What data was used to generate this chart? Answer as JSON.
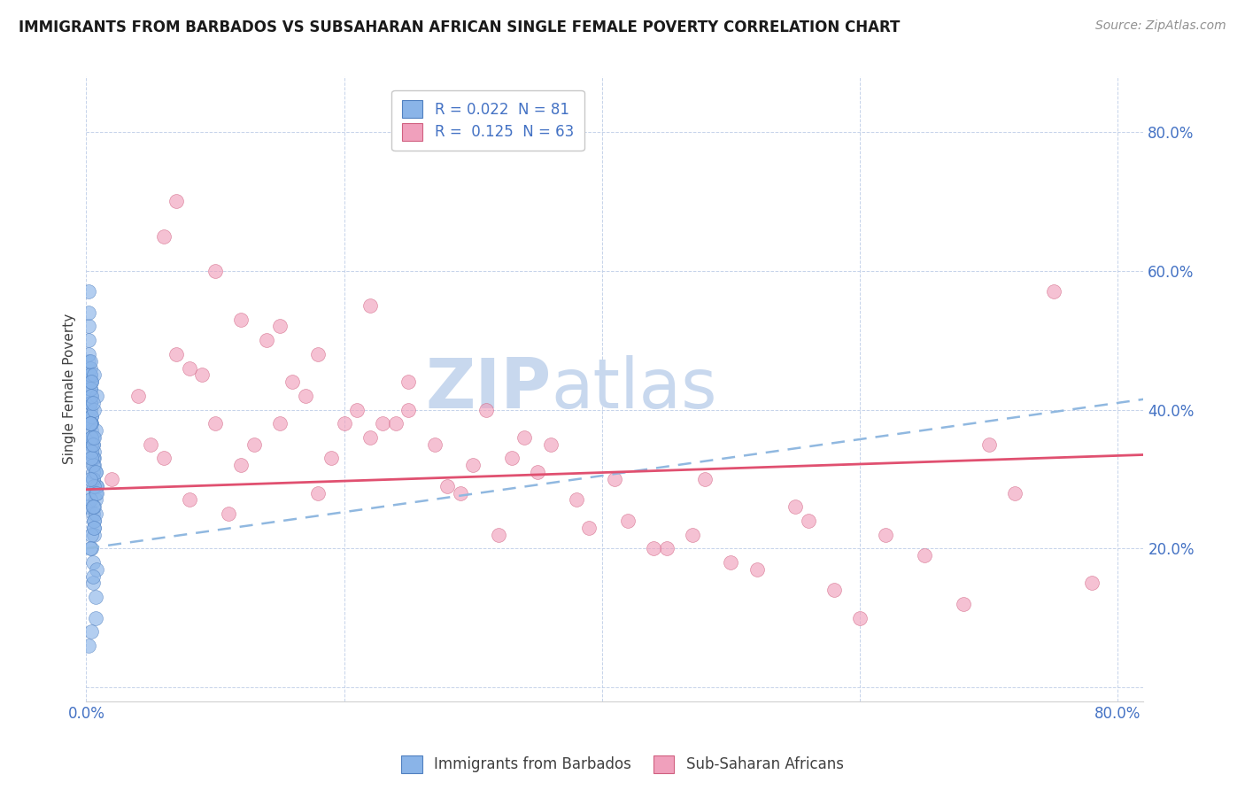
{
  "title": "IMMIGRANTS FROM BARBADOS VS SUBSAHARAN AFRICAN SINGLE FEMALE POVERTY CORRELATION CHART",
  "source": "Source: ZipAtlas.com",
  "ylabel": "Single Female Poverty",
  "xlim": [
    0.0,
    0.82
  ],
  "ylim": [
    -0.02,
    0.88
  ],
  "y_ticks": [
    0.0,
    0.2,
    0.4,
    0.6,
    0.8
  ],
  "y_tick_labels": [
    "",
    "20.0%",
    "40.0%",
    "60.0%",
    "80.0%"
  ],
  "x_ticks": [
    0.0,
    0.2,
    0.4,
    0.6,
    0.8
  ],
  "x_tick_labels": [
    "0.0%",
    "",
    "",
    "",
    "80.0%"
  ],
  "legend_line1": "R = 0.022  N = 81",
  "legend_line2": "R =  0.125  N = 63",
  "barbados_color": "#8ab4e8",
  "barbados_edge": "#5080c0",
  "subsaharan_color": "#f0a0bc",
  "subsaharan_edge": "#d06080",
  "trend_barbados_color": "#90b8e0",
  "trend_subsaharan_color": "#e05070",
  "watermark_zip": "ZIP",
  "watermark_atlas": "atlas",
  "watermark_color": "#c8d8ee",
  "background_color": "#ffffff",
  "barbados_x": [
    0.005,
    0.003,
    0.004,
    0.002,
    0.006,
    0.008,
    0.003,
    0.005,
    0.007,
    0.004,
    0.002,
    0.006,
    0.003,
    0.005,
    0.004,
    0.007,
    0.003,
    0.006,
    0.004,
    0.005,
    0.002,
    0.008,
    0.003,
    0.006,
    0.004,
    0.005,
    0.003,
    0.007,
    0.004,
    0.006,
    0.002,
    0.005,
    0.003,
    0.008,
    0.004,
    0.006,
    0.003,
    0.005,
    0.007,
    0.004,
    0.002,
    0.006,
    0.003,
    0.005,
    0.004,
    0.007,
    0.003,
    0.006,
    0.004,
    0.005,
    0.002,
    0.008,
    0.003,
    0.006,
    0.004,
    0.005,
    0.003,
    0.007,
    0.004,
    0.006,
    0.002,
    0.005,
    0.003,
    0.008,
    0.004,
    0.006,
    0.003,
    0.005,
    0.007,
    0.004,
    0.002,
    0.006,
    0.003,
    0.005,
    0.004,
    0.007,
    0.003,
    0.006,
    0.004,
    0.005,
    0.002
  ],
  "barbados_y": [
    0.35,
    0.42,
    0.38,
    0.28,
    0.33,
    0.29,
    0.4,
    0.36,
    0.31,
    0.44,
    0.26,
    0.32,
    0.45,
    0.3,
    0.37,
    0.27,
    0.43,
    0.34,
    0.39,
    0.25,
    0.47,
    0.29,
    0.41,
    0.24,
    0.36,
    0.31,
    0.46,
    0.28,
    0.38,
    0.23,
    0.48,
    0.33,
    0.27,
    0.42,
    0.35,
    0.22,
    0.44,
    0.3,
    0.25,
    0.39,
    0.5,
    0.26,
    0.43,
    0.32,
    0.2,
    0.37,
    0.45,
    0.29,
    0.34,
    0.18,
    0.52,
    0.28,
    0.41,
    0.24,
    0.36,
    0.15,
    0.47,
    0.31,
    0.22,
    0.4,
    0.54,
    0.26,
    0.38,
    0.17,
    0.33,
    0.45,
    0.2,
    0.35,
    0.13,
    0.42,
    0.57,
    0.23,
    0.38,
    0.16,
    0.44,
    0.1,
    0.3,
    0.36,
    0.08,
    0.41,
    0.06
  ],
  "subsaharan_x": [
    0.02,
    0.05,
    0.08,
    0.12,
    0.04,
    0.15,
    0.09,
    0.18,
    0.06,
    0.22,
    0.11,
    0.25,
    0.07,
    0.28,
    0.13,
    0.32,
    0.1,
    0.35,
    0.16,
    0.38,
    0.14,
    0.42,
    0.19,
    0.45,
    0.08,
    0.48,
    0.23,
    0.52,
    0.17,
    0.55,
    0.27,
    0.58,
    0.21,
    0.62,
    0.3,
    0.12,
    0.65,
    0.34,
    0.18,
    0.68,
    0.25,
    0.72,
    0.39,
    0.15,
    0.75,
    0.44,
    0.2,
    0.78,
    0.33,
    0.1,
    0.06,
    0.29,
    0.5,
    0.36,
    0.22,
    0.56,
    0.41,
    0.07,
    0.47,
    0.31,
    0.6,
    0.24,
    0.7
  ],
  "subsaharan_y": [
    0.3,
    0.35,
    0.27,
    0.32,
    0.42,
    0.38,
    0.45,
    0.28,
    0.33,
    0.36,
    0.25,
    0.4,
    0.48,
    0.29,
    0.35,
    0.22,
    0.38,
    0.31,
    0.44,
    0.27,
    0.5,
    0.24,
    0.33,
    0.2,
    0.46,
    0.3,
    0.38,
    0.17,
    0.42,
    0.26,
    0.35,
    0.14,
    0.4,
    0.22,
    0.32,
    0.53,
    0.19,
    0.36,
    0.48,
    0.12,
    0.44,
    0.28,
    0.23,
    0.52,
    0.57,
    0.2,
    0.38,
    0.15,
    0.33,
    0.6,
    0.65,
    0.28,
    0.18,
    0.35,
    0.55,
    0.24,
    0.3,
    0.7,
    0.22,
    0.4,
    0.1,
    0.38,
    0.35
  ]
}
